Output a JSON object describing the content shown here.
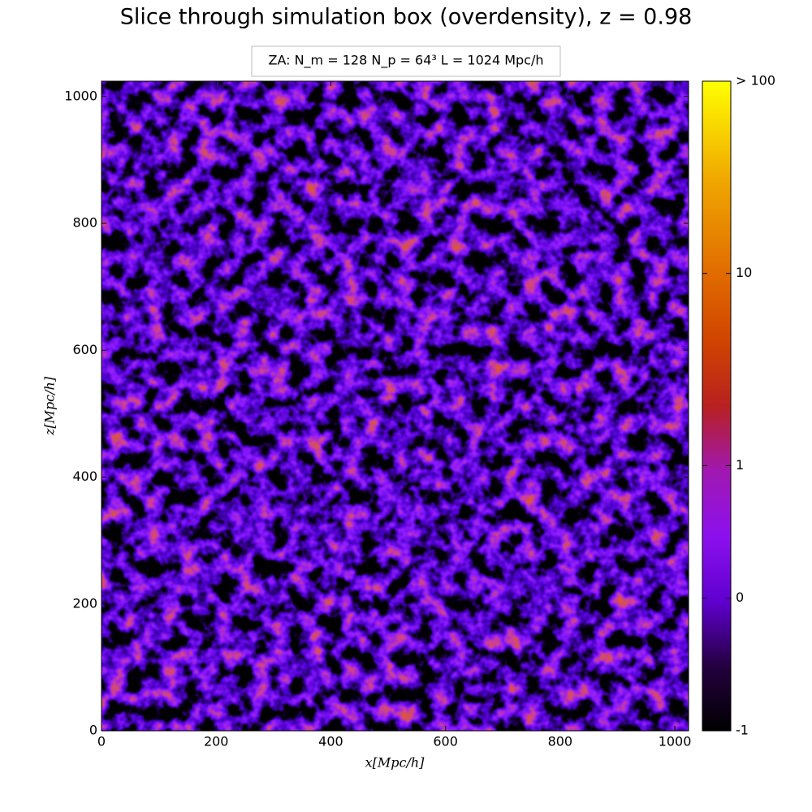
{
  "chart_data": {
    "type": "heatmap",
    "title": "Slice through simulation box (overdensity), z = 0.98",
    "annotation": "ZA:  N_m = 128   N_p = 64³   L = 1024 Mpc/h",
    "xlabel": "x[Mpc/h]",
    "ylabel": "z[Mpc/h]",
    "xlim": [
      0,
      1024
    ],
    "ylim": [
      0,
      1024
    ],
    "xticks": [
      0,
      200,
      400,
      600,
      800,
      1000
    ],
    "yticks": [
      0,
      200,
      400,
      600,
      800,
      1000
    ],
    "colorbar": {
      "scale": "symlog",
      "linthresh": 1,
      "linscale": 0.69,
      "lim": [
        -1,
        100
      ],
      "ticks": [
        -1,
        0,
        1,
        10,
        {
          "value": 100,
          "label": "> 100"
        }
      ]
    }
  }
}
